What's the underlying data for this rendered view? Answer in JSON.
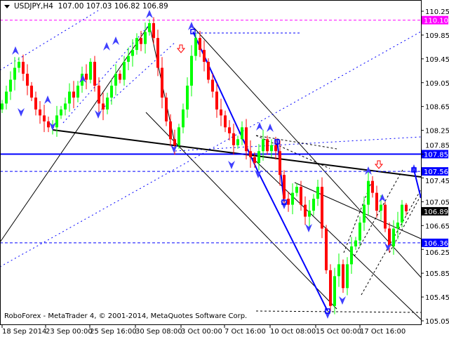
{
  "header": {
    "symbol": "USDJPY,H4",
    "open": "107.00",
    "high": "107.03",
    "low": "106.82",
    "close": "106.89"
  },
  "copyright": "RoboForex - MetaTrader 4, © 2001-2014, MetaQuotes Software Corp.",
  "colors": {
    "bull": "#00ff00",
    "bear": "#ff0000",
    "level_blue": "#0000ff",
    "level_magenta": "#ff00ff",
    "current_price_bg": "#000000"
  },
  "chart_data": {
    "type": "candlestick",
    "symbol": "USDJPY",
    "timeframe": "H4",
    "ylim": [
      105.0,
      110.3
    ],
    "y_ticks": [
      "110.25",
      "109.85",
      "109.45",
      "109.05",
      "108.65",
      "108.25",
      "107.85",
      "107.45",
      "107.05",
      "106.65",
      "106.25",
      "105.85",
      "105.45",
      "105.05"
    ],
    "x_ticks": [
      "18 Sep 2014",
      "23 Sep 00:00",
      "25 Sep 16:00",
      "30 Sep 08:00",
      "3 Oct 00:00",
      "7 Oct 16:00",
      "10 Oct 08:00",
      "15 Oct 00:00",
      "17 Oct 16:00"
    ],
    "closes": [
      108.7,
      108.9,
      109.1,
      109.3,
      109.4,
      109.2,
      109.0,
      108.8,
      108.6,
      108.5,
      108.4,
      108.3,
      108.3,
      108.5,
      108.6,
      108.7,
      108.9,
      108.8,
      109.0,
      109.2,
      109.1,
      109.4,
      109.0,
      108.7,
      108.6,
      108.8,
      109.0,
      109.2,
      109.1,
      109.4,
      109.5,
      109.6,
      109.8,
      109.7,
      109.9,
      110.05,
      109.8,
      109.3,
      108.8,
      108.4,
      108.1,
      108.0,
      108.3,
      108.6,
      109.0,
      109.5,
      109.8,
      109.6,
      109.4,
      109.1,
      108.9,
      108.6,
      108.5,
      108.3,
      108.2,
      108.0,
      108.1,
      108.3,
      107.9,
      107.8,
      107.7,
      107.9,
      108.1,
      107.9,
      108.0,
      107.9,
      107.5,
      107.1,
      107.0,
      107.2,
      107.3,
      107.0,
      106.8,
      106.9,
      107.1,
      107.3,
      106.6,
      105.9,
      105.3,
      105.8,
      106.0,
      105.6,
      106.0,
      106.3,
      106.4,
      106.7,
      107.0,
      107.4,
      107.2,
      106.9,
      107.0,
      106.6,
      106.3,
      106.6,
      106.7,
      107.0,
      106.89
    ],
    "last_candle": {
      "open": 107.0,
      "high": 107.03,
      "low": 106.82,
      "close": 106.89
    },
    "levels": [
      {
        "price": "110.10",
        "style": "dashed",
        "color": "#ff00ff"
      },
      {
        "price": "107.85",
        "style": "solid",
        "color": "#0000ff"
      },
      {
        "price": "107.56",
        "style": "dashed",
        "color": "#0000ff"
      },
      {
        "price": "106.36",
        "style": "dashed",
        "color": "#0000ff"
      }
    ],
    "current_price": "106.89"
  }
}
